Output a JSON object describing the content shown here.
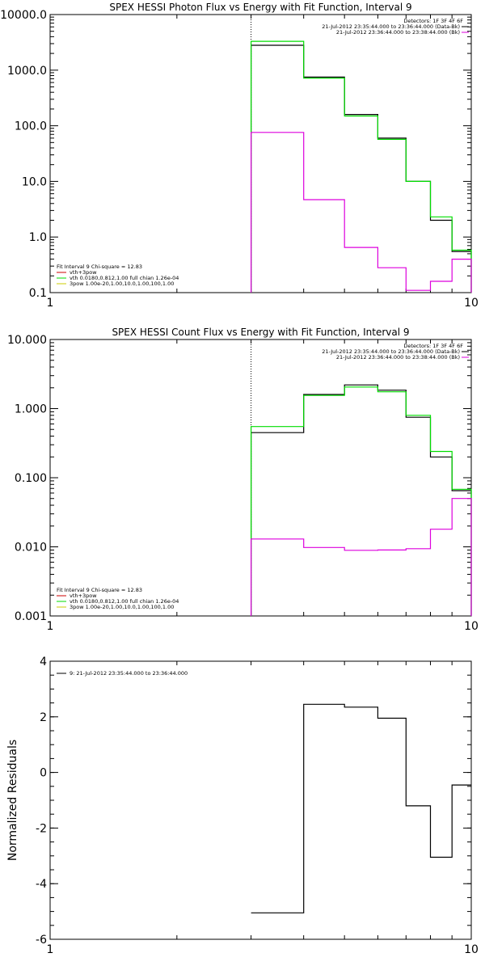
{
  "colors": {
    "data": "#000000",
    "fit": "#00dd00",
    "bk": "#dd00dd",
    "line1": "#cc0000",
    "line3": "#cccc00"
  },
  "chart_data": [
    {
      "type": "line",
      "step": true,
      "title": "SPEX HESSI Photon Flux vs Energy with Fit Function, Interval 9",
      "xlabel": "",
      "ylabel": "",
      "xscale": "log",
      "yscale": "log",
      "xlim": [
        1,
        10
      ],
      "ylim": [
        0.1,
        10000
      ],
      "xticks": [
        {
          "v": 1,
          "label": "1"
        },
        {
          "v": 10,
          "label": "10"
        }
      ],
      "yticks": [
        {
          "v": 0.1,
          "label": "0.1"
        },
        {
          "v": 1,
          "label": "1.0"
        },
        {
          "v": 10,
          "label": "10.0"
        },
        {
          "v": 100,
          "label": "100.0"
        },
        {
          "v": 1000,
          "label": "1000.0"
        },
        {
          "v": 10000,
          "label": "10000.0"
        }
      ],
      "vline": 3,
      "energy_edges": [
        3,
        4,
        5,
        6,
        7,
        8,
        9,
        10
      ],
      "series": [
        {
          "key": "data",
          "color": "#000000",
          "values": [
            2800,
            750,
            160,
            60,
            10,
            2.0,
            0.55
          ]
        },
        {
          "key": "fit",
          "color": "#00dd00",
          "values": [
            3300,
            720,
            150,
            57,
            10,
            2.3,
            0.58
          ]
        },
        {
          "key": "bk",
          "color": "#dd00dd",
          "values": [
            76,
            4.7,
            0.65,
            0.28,
            0.11,
            0.16,
            0.4
          ]
        }
      ],
      "legend_top": {
        "header": "Detectors: 1F 3F 4F 6F",
        "entries": [
          {
            "text": "21-Jul-2012 23:35:44.000 to 23:36:44.000 (Data-Bk)",
            "color": "#000000"
          },
          {
            "text": "21-Jul-2012 23:36:44.000 to 23:38:44.000 (Bk)",
            "color": "#dd00dd"
          }
        ]
      },
      "legend_bottom": {
        "header": "Fit Interval 9   Chi-square = 12.83",
        "entries": [
          {
            "text": "vth+3pow",
            "color": "#cc0000"
          },
          {
            "text": "vth 0.0180,0.812,1.00  full chian 1.26e-04",
            "color": "#00dd00"
          },
          {
            "text": "3pow 1.00e-20,1.00,10.0,1.00,100,1.00",
            "color": "#cccc00"
          }
        ]
      }
    },
    {
      "type": "line",
      "step": true,
      "title": "SPEX HESSI Count Flux vs Energy with Fit Function, Interval 9",
      "xlabel": "",
      "ylabel": "",
      "xscale": "log",
      "yscale": "log",
      "xlim": [
        1,
        10
      ],
      "ylim": [
        0.001,
        10
      ],
      "xticks": [
        {
          "v": 1,
          "label": "1"
        },
        {
          "v": 10,
          "label": "10"
        }
      ],
      "yticks": [
        {
          "v": 0.001,
          "label": "0.001"
        },
        {
          "v": 0.01,
          "label": "0.010"
        },
        {
          "v": 0.1,
          "label": "0.100"
        },
        {
          "v": 1,
          "label": "1.000"
        },
        {
          "v": 10,
          "label": "10.000"
        }
      ],
      "vline": 3,
      "energy_edges": [
        3,
        4,
        5,
        6,
        7,
        8,
        9,
        10
      ],
      "series": [
        {
          "key": "data",
          "color": "#000000",
          "values": [
            0.45,
            1.6,
            2.2,
            1.85,
            0.75,
            0.2,
            0.065
          ]
        },
        {
          "key": "fit",
          "color": "#00dd00",
          "values": [
            0.55,
            1.55,
            2.05,
            1.75,
            0.8,
            0.24,
            0.068
          ]
        },
        {
          "key": "bk",
          "color": "#dd00dd",
          "values": [
            0.013,
            0.0098,
            0.0089,
            0.009,
            0.0094,
            0.018,
            0.05
          ]
        }
      ],
      "legend_top": {
        "header": "Detectors: 1F 3F 4F 6F",
        "entries": [
          {
            "text": "21-Jul-2012 23:35:44.000 to 23:36:44.000 (Data-Bk)",
            "color": "#000000"
          },
          {
            "text": "21-Jul-2012 23:36:44.000 to 23:38:44.000 (Bk)",
            "color": "#dd00dd"
          }
        ]
      },
      "legend_bottom": {
        "header": "Fit Interval 9   Chi-square = 12.83",
        "entries": [
          {
            "text": "vth+3pow",
            "color": "#cc0000"
          },
          {
            "text": "vth 0.0180,0.812,1.00  full chian 1.26e-04",
            "color": "#00dd00"
          },
          {
            "text": "3pow 1.00e-20,1.00,10.0,1.00,100,1.00",
            "color": "#cccc00"
          }
        ]
      }
    },
    {
      "type": "line",
      "step": true,
      "title": "",
      "xlabel": "",
      "ylabel": "Normalized Residuals",
      "xscale": "log",
      "yscale": "linear",
      "xlim": [
        1,
        10
      ],
      "ylim": [
        -6,
        4
      ],
      "xticks": [
        {
          "v": 1,
          "label": "1"
        },
        {
          "v": 10,
          "label": "10"
        }
      ],
      "yticks": [
        {
          "v": -6,
          "label": "-6"
        },
        {
          "v": -4,
          "label": "-4"
        },
        {
          "v": -2,
          "label": "-2"
        },
        {
          "v": 0,
          "label": "0"
        },
        {
          "v": 2,
          "label": "2"
        },
        {
          "v": 4,
          "label": "4"
        }
      ],
      "energy_edges": [
        3,
        4,
        5,
        6,
        7,
        8,
        9,
        10
      ],
      "series": [
        {
          "key": "residuals",
          "color": "#000000",
          "values": [
            -5.05,
            2.45,
            2.35,
            1.95,
            -1.2,
            -3.05,
            -0.45
          ]
        }
      ],
      "legend_top": {
        "header": "",
        "entries": [
          {
            "text": "9: 21-Jul-2012 23:35:44.000 to 23:36:44.000",
            "color": "#000000"
          }
        ]
      }
    }
  ]
}
